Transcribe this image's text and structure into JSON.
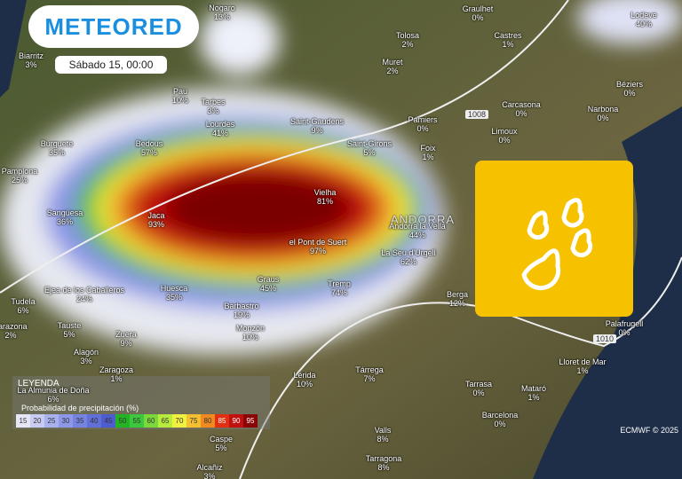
{
  "header": {
    "brand": "METEORED",
    "date": "Sábado 15, 00:00"
  },
  "cities": [
    {
      "name": "Nogaro",
      "value": "13%"
    },
    {
      "name": "Biarritz",
      "value": "3%"
    },
    {
      "name": "Pau",
      "value": "10%"
    },
    {
      "name": "Tarbes",
      "value": "3%"
    },
    {
      "name": "Lourdes",
      "value": "41%"
    },
    {
      "name": "Saint-Gaudens",
      "value": "9%"
    },
    {
      "name": "Saint-Girons",
      "value": "5%"
    },
    {
      "name": "Pamiers",
      "value": "0%"
    },
    {
      "name": "Foix",
      "value": "1%"
    },
    {
      "name": "Tolosa",
      "value": "2%"
    },
    {
      "name": "Graulhet",
      "value": "0%"
    },
    {
      "name": "Castres",
      "value": "1%"
    },
    {
      "name": "Muret",
      "value": "2%"
    },
    {
      "name": "Carcasona",
      "value": "0%"
    },
    {
      "name": "Limoux",
      "value": "0%"
    },
    {
      "name": "Narbona",
      "value": "0%"
    },
    {
      "name": "Béziers",
      "value": "0%"
    },
    {
      "name": "Lodeve",
      "value": "40%"
    },
    {
      "name": "Burguete",
      "value": "35%"
    },
    {
      "name": "Pamplona",
      "value": "25%"
    },
    {
      "name": "Bedous",
      "value": "57%"
    },
    {
      "name": "Sangüesa",
      "value": "36%"
    },
    {
      "name": "Jaca",
      "value": "93%"
    },
    {
      "name": "Vielha",
      "value": "81%"
    },
    {
      "name": "Andorra la Vella",
      "value": "44%"
    },
    {
      "name": "el Pont de Suert",
      "value": "97%"
    },
    {
      "name": "La Seu d'Urgell",
      "value": "62%"
    },
    {
      "name": "Graus",
      "value": "45%"
    },
    {
      "name": "Tremp",
      "value": "74%"
    },
    {
      "name": "Berga",
      "value": "12%"
    },
    {
      "name": "Ejea de los Caballeros",
      "value": "24%"
    },
    {
      "name": "Huesca",
      "value": "35%"
    },
    {
      "name": "Tudela",
      "value": "6%"
    },
    {
      "name": "Barbastro",
      "value": "19%"
    },
    {
      "name": "Monzón",
      "value": "10%"
    },
    {
      "name": "Tarazona",
      "value": "2%"
    },
    {
      "name": "Tauste",
      "value": "5%"
    },
    {
      "name": "Zuera",
      "value": "9%"
    },
    {
      "name": "Alagón",
      "value": "3%"
    },
    {
      "name": "Zaragoza",
      "value": "1%"
    },
    {
      "name": "La Almunia de Doña",
      "value": "6%"
    },
    {
      "name": "Lérida",
      "value": "10%"
    },
    {
      "name": "Tárrega",
      "value": "7%"
    },
    {
      "name": "Caspe",
      "value": "5%"
    },
    {
      "name": "Valls",
      "value": "8%"
    },
    {
      "name": "Tarragona",
      "value": "8%"
    },
    {
      "name": "Alcañiz",
      "value": "3%"
    },
    {
      "name": "Tarrasa",
      "value": "0%"
    },
    {
      "name": "Mataró",
      "value": "1%"
    },
    {
      "name": "Barcelona",
      "value": "0%"
    },
    {
      "name": "Lloret de Mar",
      "value": "1%"
    },
    {
      "name": "Palafrugell",
      "value": "0%"
    }
  ],
  "region_label": "ANDORRA",
  "isobars": [
    "1008",
    "1010"
  ],
  "legend": {
    "title": "LEYENDA",
    "subtitle": "Probabilidad de precipitación (%)",
    "steps": [
      15,
      20,
      25,
      30,
      35,
      40,
      45,
      50,
      55,
      60,
      65,
      70,
      75,
      80,
      85,
      90,
      95
    ],
    "colors": [
      "#e6e6f6",
      "#c9ccf2",
      "#aab2ee",
      "#8e98e8",
      "#7684e0",
      "#6070d8",
      "#4d5ccf",
      "#22b422",
      "#3cc83c",
      "#7ad83a",
      "#b8ec3c",
      "#f0f040",
      "#f2c030",
      "#f08a20",
      "#e03010",
      "#c01010",
      "#8a0606"
    ]
  },
  "credit": "ECMWF © 2025"
}
